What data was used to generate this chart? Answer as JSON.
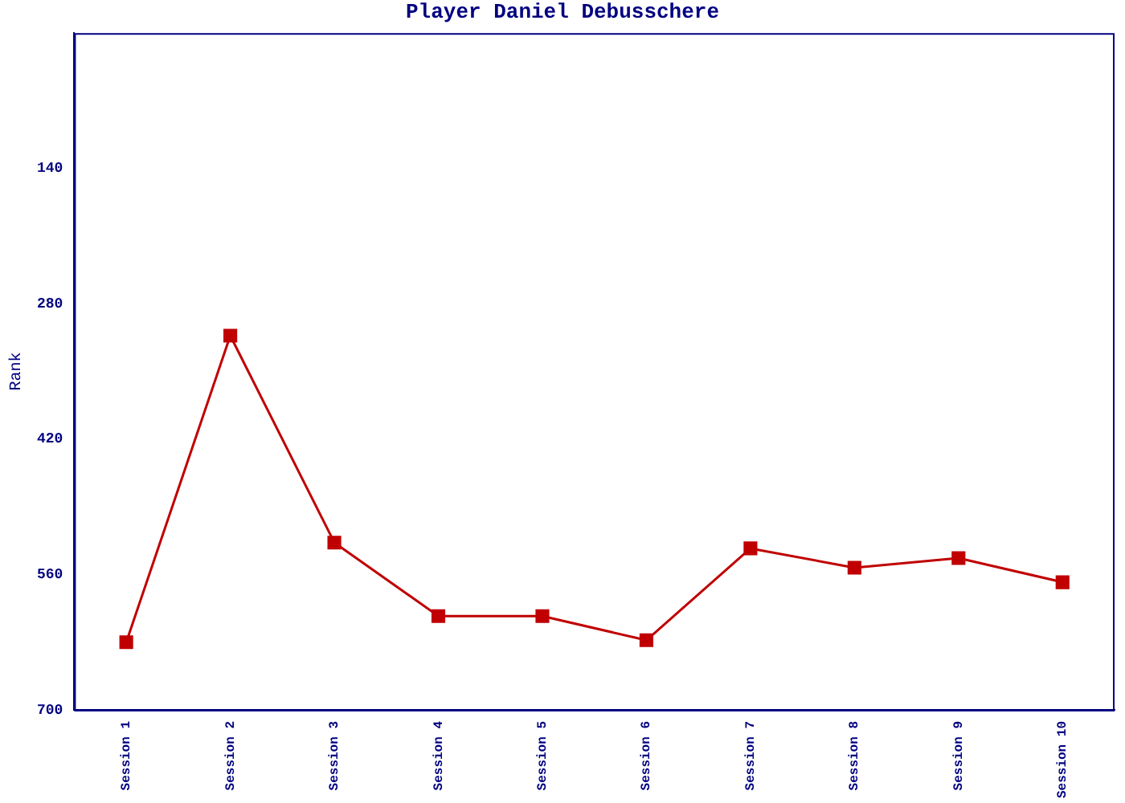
{
  "chart_data": {
    "type": "line",
    "title": "Player Daniel Debusschere",
    "ylabel": "Rank",
    "categories": [
      "Session 1",
      "Session 2",
      "Session 3",
      "Session 4",
      "Session 5",
      "Session 6",
      "Session 7",
      "Session 8",
      "Session 9",
      "Session 10"
    ],
    "series": [
      {
        "color": "#c00000",
        "values": [
          630,
          313,
          527,
          603,
          603,
          628,
          533,
          553,
          543,
          568
        ]
      }
    ],
    "ylim": [
      700,
      0
    ],
    "yticks": [
      140,
      280,
      420,
      560,
      700
    ],
    "grid": false,
    "legend": false,
    "marker": "square",
    "line_style": "solid"
  }
}
